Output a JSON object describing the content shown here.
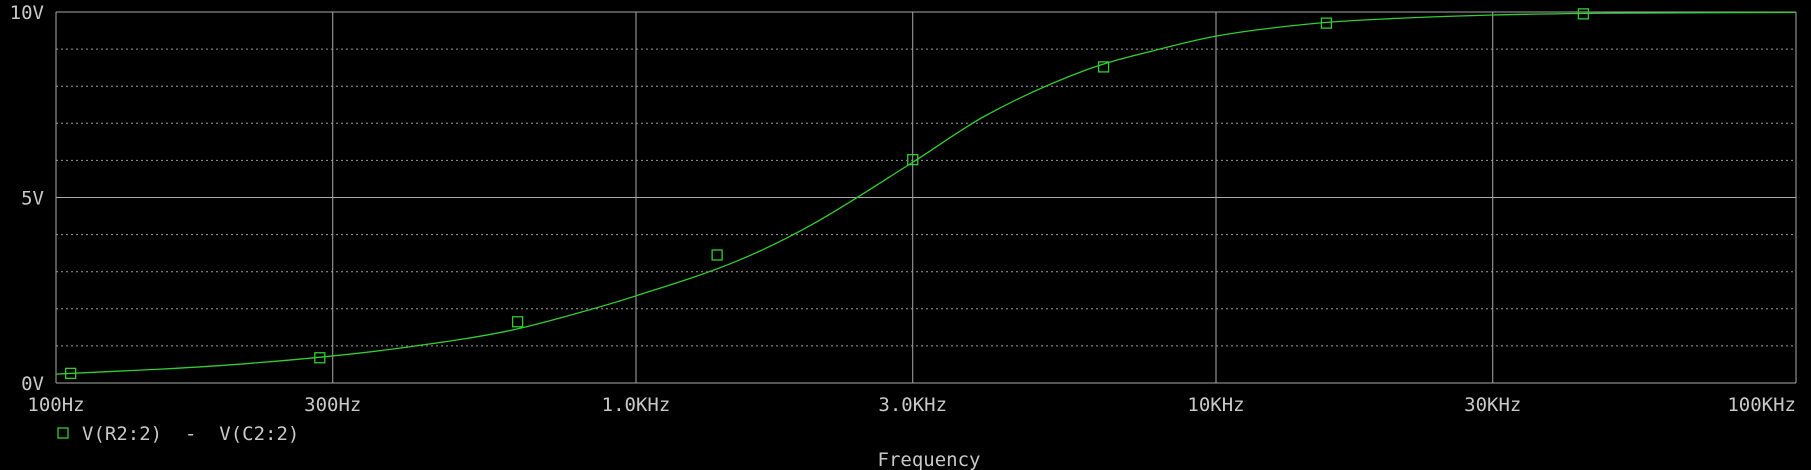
{
  "chart_data": {
    "type": "line",
    "x_scale": "log",
    "xlim": [
      100,
      100000
    ],
    "ylim": [
      0,
      10
    ],
    "grid": true,
    "xlabel": "Frequency",
    "x_ticks": [
      {
        "value": 100,
        "label": "100Hz"
      },
      {
        "value": 300,
        "label": "300Hz"
      },
      {
        "value": 1000,
        "label": "1.0KHz"
      },
      {
        "value": 3000,
        "label": "3.0KHz"
      },
      {
        "value": 10000,
        "label": "10KHz"
      },
      {
        "value": 30000,
        "label": "30KHz"
      },
      {
        "value": 100000,
        "label": "100KHz"
      }
    ],
    "y_ticks": [
      {
        "value": 0,
        "label": "0V"
      },
      {
        "value": 5,
        "label": "5V"
      },
      {
        "value": 10,
        "label": "10V"
      }
    ],
    "y_minor_ticks": [
      1,
      2,
      3,
      4,
      6,
      7,
      8,
      9
    ],
    "series": [
      {
        "name": "V(R2:2)  -  V(C2:2)",
        "color": "#33cc33",
        "marker": "square",
        "x": [
          100,
          150,
          200,
          300,
          400,
          600,
          800,
          1000,
          1500,
          2000,
          3000,
          4000,
          6000,
          8000,
          10000,
          15000,
          20000,
          30000,
          50000,
          100000
        ],
        "y": [
          0.24,
          0.37,
          0.49,
          0.73,
          0.96,
          1.4,
          1.9,
          2.35,
          3.3,
          4.25,
          5.95,
          7.2,
          8.45,
          9.0,
          9.35,
          9.7,
          9.82,
          9.92,
          9.97,
          9.99
        ],
        "marker_points": [
          [
            106,
            0.26
          ],
          [
            285,
            0.68
          ],
          [
            625,
            1.65
          ],
          [
            1380,
            3.45
          ],
          [
            3000,
            6.02
          ],
          [
            6400,
            8.52
          ],
          [
            15500,
            9.7
          ],
          [
            43000,
            9.95
          ]
        ]
      }
    ]
  }
}
